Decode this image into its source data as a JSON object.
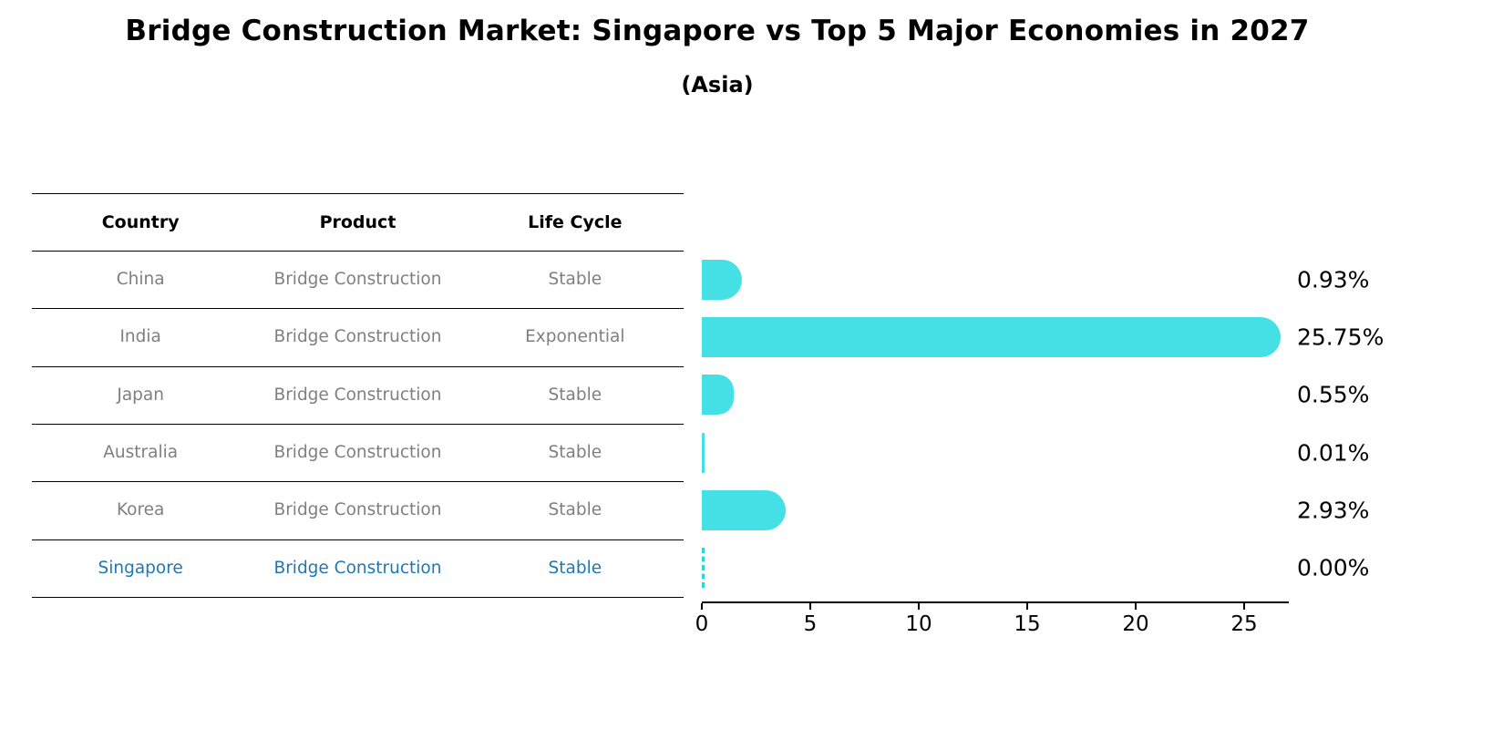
{
  "title": "Bridge Construction Market: Singapore vs Top 5 Major Economies in 2027",
  "subtitle": "(Asia)",
  "table": {
    "headers": [
      "Country",
      "Product",
      "Life Cycle"
    ],
    "header_text_color": "#000000",
    "row_text_color": "#7f7f7f",
    "highlight_text_color": "#1f77b4",
    "rows": [
      {
        "country": "China",
        "product": "Bridge Construction",
        "life_cycle": "Stable",
        "highlight": false
      },
      {
        "country": "India",
        "product": "Bridge Construction",
        "life_cycle": "Exponential",
        "highlight": false
      },
      {
        "country": "Japan",
        "product": "Bridge Construction",
        "life_cycle": "Stable",
        "highlight": false
      },
      {
        "country": "Australia",
        "product": "Bridge Construction",
        "life_cycle": "Stable",
        "highlight": false
      },
      {
        "country": "Korea",
        "product": "Bridge Construction",
        "life_cycle": "Stable",
        "highlight": false
      },
      {
        "country": "Singapore",
        "product": "Bridge Construction",
        "life_cycle": "Stable",
        "highlight": true
      }
    ]
  },
  "chart_data": {
    "type": "bar",
    "orientation": "horizontal",
    "title": "Bridge Construction Market: Singapore vs Top 5 Major Economies in 2027 (Asia)",
    "categories": [
      "China",
      "India",
      "Japan",
      "Australia",
      "Korea",
      "Singapore"
    ],
    "values": [
      0.93,
      25.75,
      0.55,
      0.01,
      2.93,
      0.0
    ],
    "value_labels": [
      "0.93%",
      "25.75%",
      "0.55%",
      "0.01%",
      "2.93%",
      "0.00%"
    ],
    "xlabel": "",
    "ylabel": "",
    "xticks": [
      0,
      5,
      10,
      15,
      20,
      25
    ],
    "xlim": [
      0,
      27
    ],
    "grid": false,
    "legend": false,
    "bar_color": "#44e0e6",
    "zero_marker_color": "#2fd3da"
  }
}
